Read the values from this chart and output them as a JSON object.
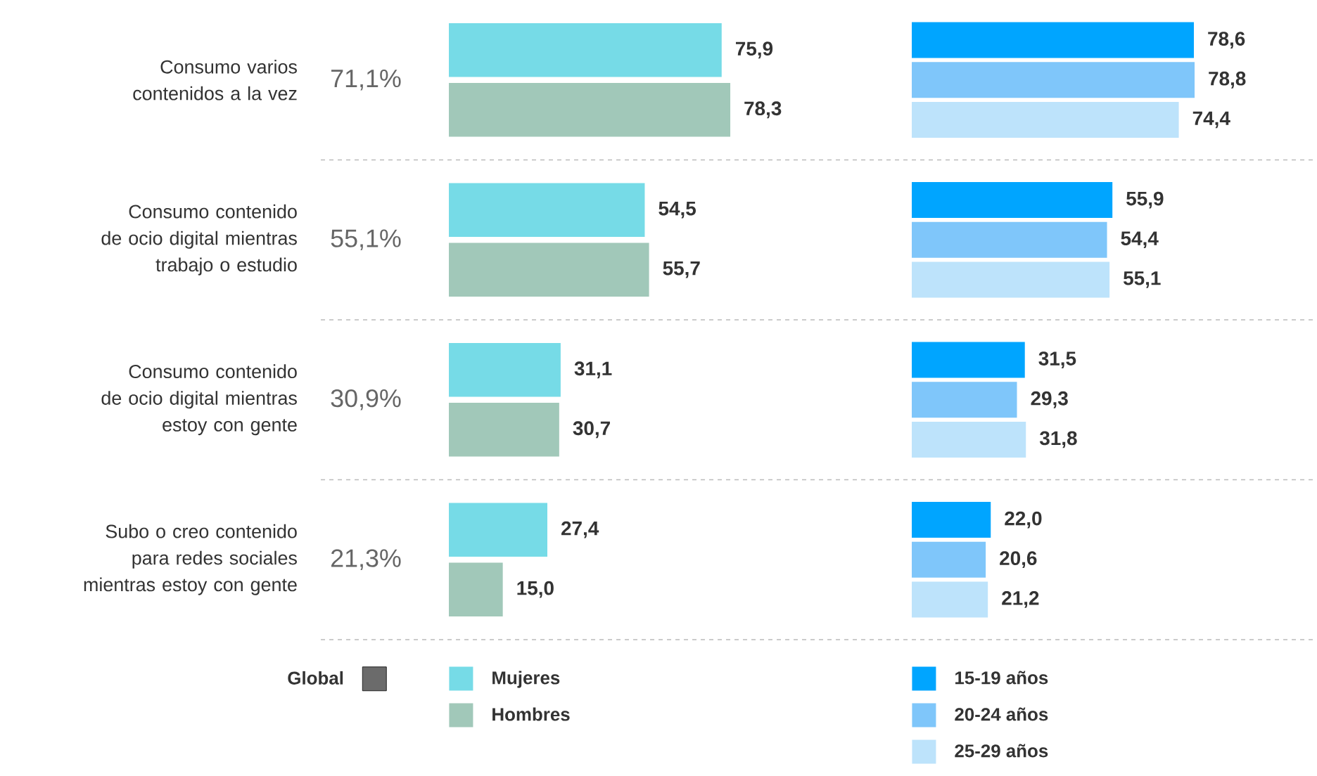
{
  "chart_data": [
    {
      "type": "other",
      "categories": [
        "Consumo varios contenidos a la vez",
        "Consumo contenido de ocio digital mientras trabajo o estudio",
        "Consumo contenido de ocio digital mientras estoy con gente",
        "Subo o creo contenido para redes sociales mientras estoy con gente"
      ],
      "legend": "bottom",
      "series": [
        {
          "name": "Global",
          "color": "#6b6b6b",
          "values": [
            71.1,
            55.1,
            30.9,
            21.3
          ],
          "value_labels": [
            "71,1%",
            "55,1%",
            "30,9%",
            "21,3%"
          ]
        }
      ]
    },
    {
      "type": "bar",
      "orientation": "horizontal",
      "categories": [
        null,
        null,
        null,
        null
      ],
      "tick_labels": false,
      "legend": "bottom",
      "series": [
        {
          "name": "Mujeres",
          "color": "#76dbe7",
          "values": [
            75.9,
            54.5,
            31.1,
            27.4
          ],
          "value_labels": [
            "75,9",
            "54,5",
            "31,1",
            "27,4"
          ]
        },
        {
          "name": "Hombres",
          "color": "#a1c8b9",
          "values": [
            78.3,
            55.7,
            30.7,
            15.0
          ],
          "value_labels": [
            "78,3",
            "55,7",
            "30,7",
            "15,0"
          ]
        }
      ]
    },
    {
      "type": "bar",
      "orientation": "horizontal",
      "categories": [
        null,
        null,
        null,
        null
      ],
      "tick_labels": false,
      "legend": "bottom",
      "series": [
        {
          "name": "15-19 años",
          "color": "#00a5ff",
          "values": [
            78.6,
            55.9,
            31.5,
            22.0
          ],
          "value_labels": [
            "78,6",
            "55,9",
            "31,5",
            "22,0"
          ]
        },
        {
          "name": "20-24 años",
          "color": "#7fc6fa",
          "values": [
            78.8,
            54.4,
            29.3,
            20.6
          ],
          "value_labels": [
            "78,8",
            "54,4",
            "29,3",
            "20,6"
          ]
        },
        {
          "name": "25-29 años",
          "color": "#bde3fb",
          "values": [
            74.4,
            55.1,
            31.8,
            21.2
          ],
          "value_labels": [
            "74,4",
            "55,1",
            "31,8",
            "21,2"
          ]
        }
      ]
    }
  ]
}
